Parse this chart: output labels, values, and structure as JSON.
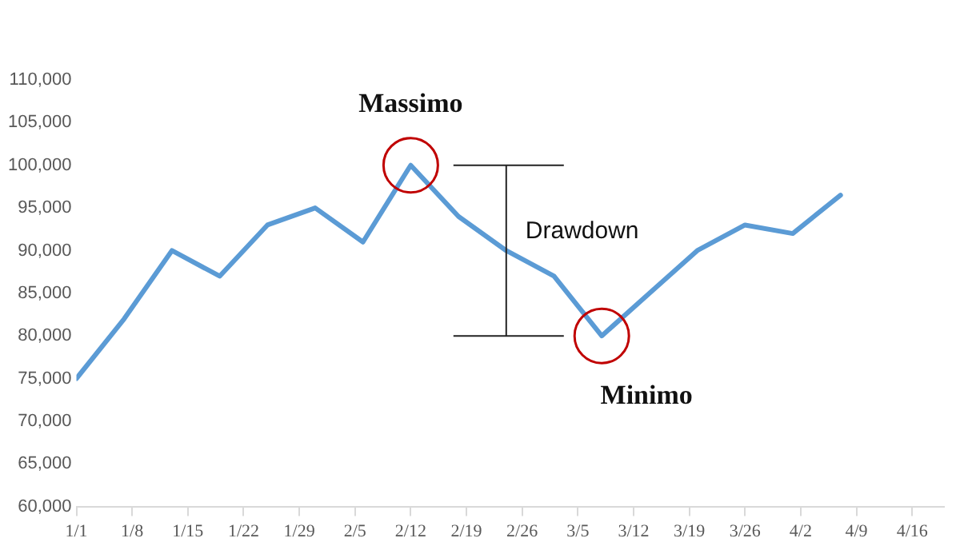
{
  "chart_data": {
    "type": "line",
    "x": [
      "--01-01",
      "--01-07",
      "--01-13",
      "--01-19",
      "--01-25",
      "--01-31",
      "--02-06",
      "--02-12",
      "--02-18",
      "--02-24",
      "--03-02",
      "--03-08",
      "--03-14",
      "--03-20",
      "--03-26",
      "--04-01",
      "--04-07"
    ],
    "series": [
      {
        "color": "#5b9bd5",
        "values": [
          75000,
          82000,
          90000,
          87000,
          93000,
          95000,
          91000,
          100000,
          94000,
          90000,
          87000,
          80000,
          85000,
          90000,
          93000,
          92000,
          96500
        ]
      }
    ],
    "xlim": [
      "--01-01",
      "--04-20"
    ],
    "xticks": [
      {
        "value": "--01-01",
        "label": "1/1"
      },
      {
        "value": "--01-08",
        "label": "1/8"
      },
      {
        "value": "--01-15",
        "label": "1/15"
      },
      {
        "value": "--01-22",
        "label": "1/22"
      },
      {
        "value": "--01-29",
        "label": "1/29"
      },
      {
        "value": "--02-05",
        "label": "2/5"
      },
      {
        "value": "--02-12",
        "label": "2/12"
      },
      {
        "value": "--02-19",
        "label": "2/19"
      },
      {
        "value": "--02-26",
        "label": "2/26"
      },
      {
        "value": "--03-05",
        "label": "3/5"
      },
      {
        "value": "--03-12",
        "label": "3/12"
      },
      {
        "value": "--03-19",
        "label": "3/19"
      },
      {
        "value": "--03-26",
        "label": "3/26"
      },
      {
        "value": "--04-02",
        "label": "4/2"
      },
      {
        "value": "--04-09",
        "label": "4/9"
      },
      {
        "value": "--04-16",
        "label": "4/16"
      }
    ],
    "ylim": [
      60000,
      110000
    ],
    "yticks": [
      {
        "value": 60000,
        "label": "60,000"
      },
      {
        "value": 65000,
        "label": "65,000"
      },
      {
        "value": 70000,
        "label": "70,000"
      },
      {
        "value": 75000,
        "label": "75,000"
      },
      {
        "value": 80000,
        "label": "80,000"
      },
      {
        "value": 85000,
        "label": "85,000"
      },
      {
        "value": 90000,
        "label": "90,000"
      },
      {
        "value": 95000,
        "label": "95,000"
      },
      {
        "value": 100000,
        "label": "100,000"
      },
      {
        "value": 105000,
        "label": "105,000"
      },
      {
        "value": 110000,
        "label": "110,000"
      }
    ],
    "grid": false,
    "legend": false,
    "marker": "none",
    "line_style": "solid",
    "annotations": [
      {
        "text": "Massimo",
        "x": "--02-12",
        "y": 100000
      },
      {
        "text": "Minimo",
        "x": "--03-08",
        "y": 80000
      },
      {
        "text": "Drawdown",
        "x": "--02-24",
        "y": 90000
      }
    ]
  }
}
